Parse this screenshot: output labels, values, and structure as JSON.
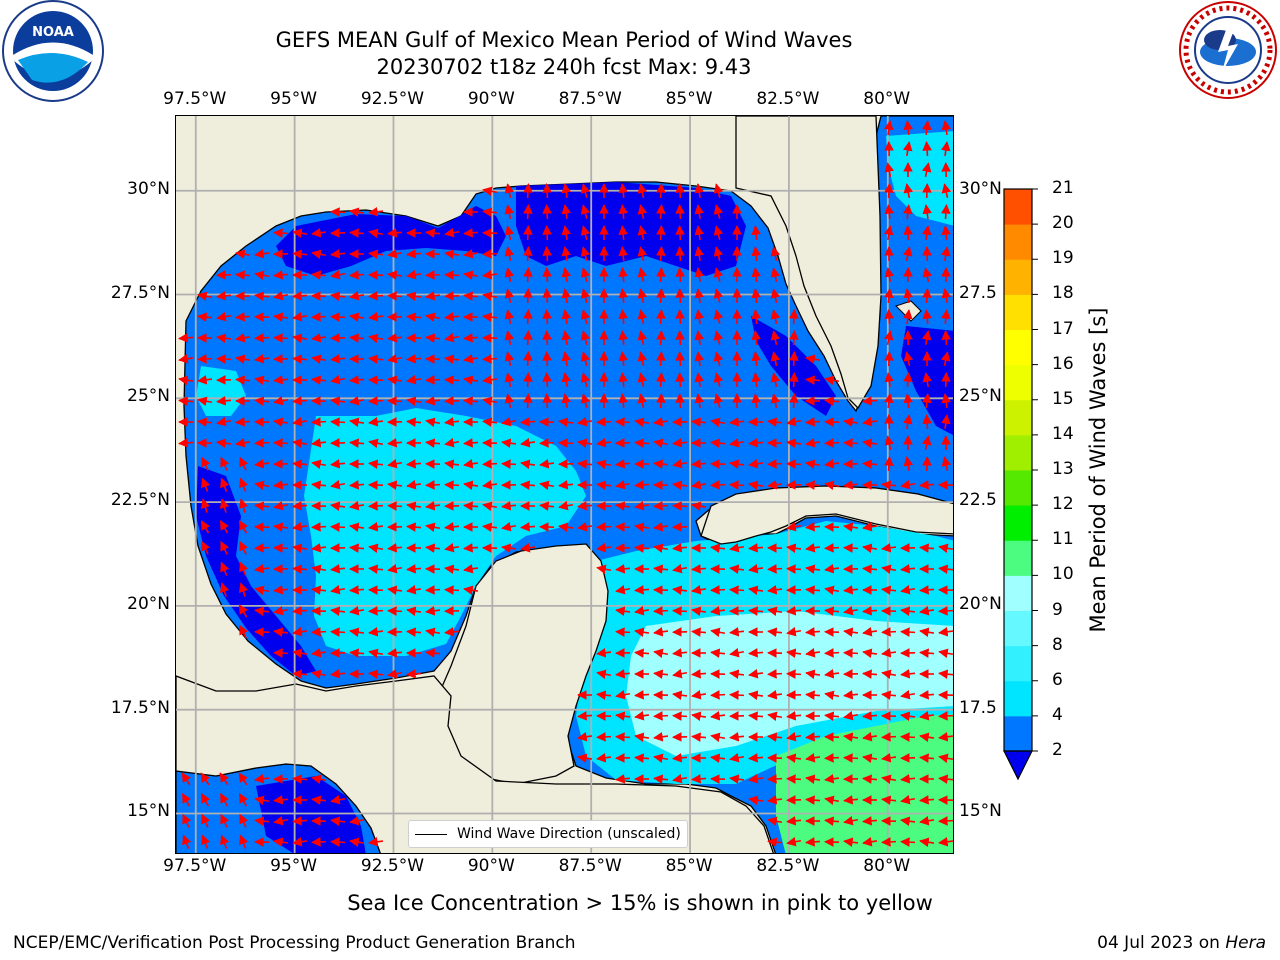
{
  "header": {
    "title_line1": "GEFS MEAN Gulf of Mexico Mean Period of Wind Waves",
    "title_line2": "20230702 t18z 240h fcst   Max: 9.43"
  },
  "logos": {
    "left": {
      "name": "noaa-logo",
      "text": "NOAA"
    },
    "right": {
      "name": "nws-logo",
      "text": "NATIONAL WEATHER SERVICE"
    }
  },
  "axes": {
    "lon_labels": [
      "97.5°W",
      "95°W",
      "92.5°W",
      "90°W",
      "87.5°W",
      "85°W",
      "82.5°W",
      "80°W"
    ],
    "lon_values": [
      -97.5,
      -95,
      -92.5,
      -90,
      -87.5,
      -85,
      -82.5,
      -80
    ],
    "lat_labels_left": [
      "30°N",
      "27.5°N",
      "25°N",
      "22.5°N",
      "20°N",
      "17.5°N",
      "15°N"
    ],
    "lat_labels_right": [
      "30°N",
      "27.5",
      "25°N",
      "22.5",
      "20°N",
      "17.5",
      "15°N"
    ],
    "lat_values": [
      30,
      27.5,
      25,
      22.5,
      20,
      17.5,
      15
    ],
    "lon_range": [
      -98,
      -78.3
    ],
    "lat_range": [
      14,
      31.8
    ],
    "grid": true
  },
  "colorbar": {
    "label": "Mean Period of Wind Waves [s]",
    "ticks": [
      "2",
      "4",
      "6",
      "8",
      "9",
      "10",
      "11",
      "12",
      "13",
      "14",
      "15",
      "16",
      "17",
      "18",
      "19",
      "20",
      "21"
    ],
    "colors": [
      "#0077ff",
      "#00e5ff",
      "#33f0ff",
      "#66f8ff",
      "#a0ffff",
      "#4cfc80",
      "#00ee00",
      "#55e800",
      "#a0ee00",
      "#ccf200",
      "#eeff00",
      "#ffff00",
      "#ffe000",
      "#ffb300",
      "#ff8a00",
      "#ff5000",
      "#ff1800",
      "#ff0000"
    ],
    "extend_color": "#0000ee"
  },
  "map": {
    "land_color": "#efeddb",
    "water_color": "#0077ff",
    "legend_text": "Wind Wave Direction (unscaled)",
    "arrow_color": "#ff0000"
  },
  "notes": {
    "sea_ice": "Sea Ice Concentration > 15% is shown in pink to yellow"
  },
  "footer": {
    "left": "NCEP/EMC/Verification Post Processing Product Generation Branch",
    "right_prefix": "04 Jul 2023 on ",
    "right_machine": "Hera"
  }
}
